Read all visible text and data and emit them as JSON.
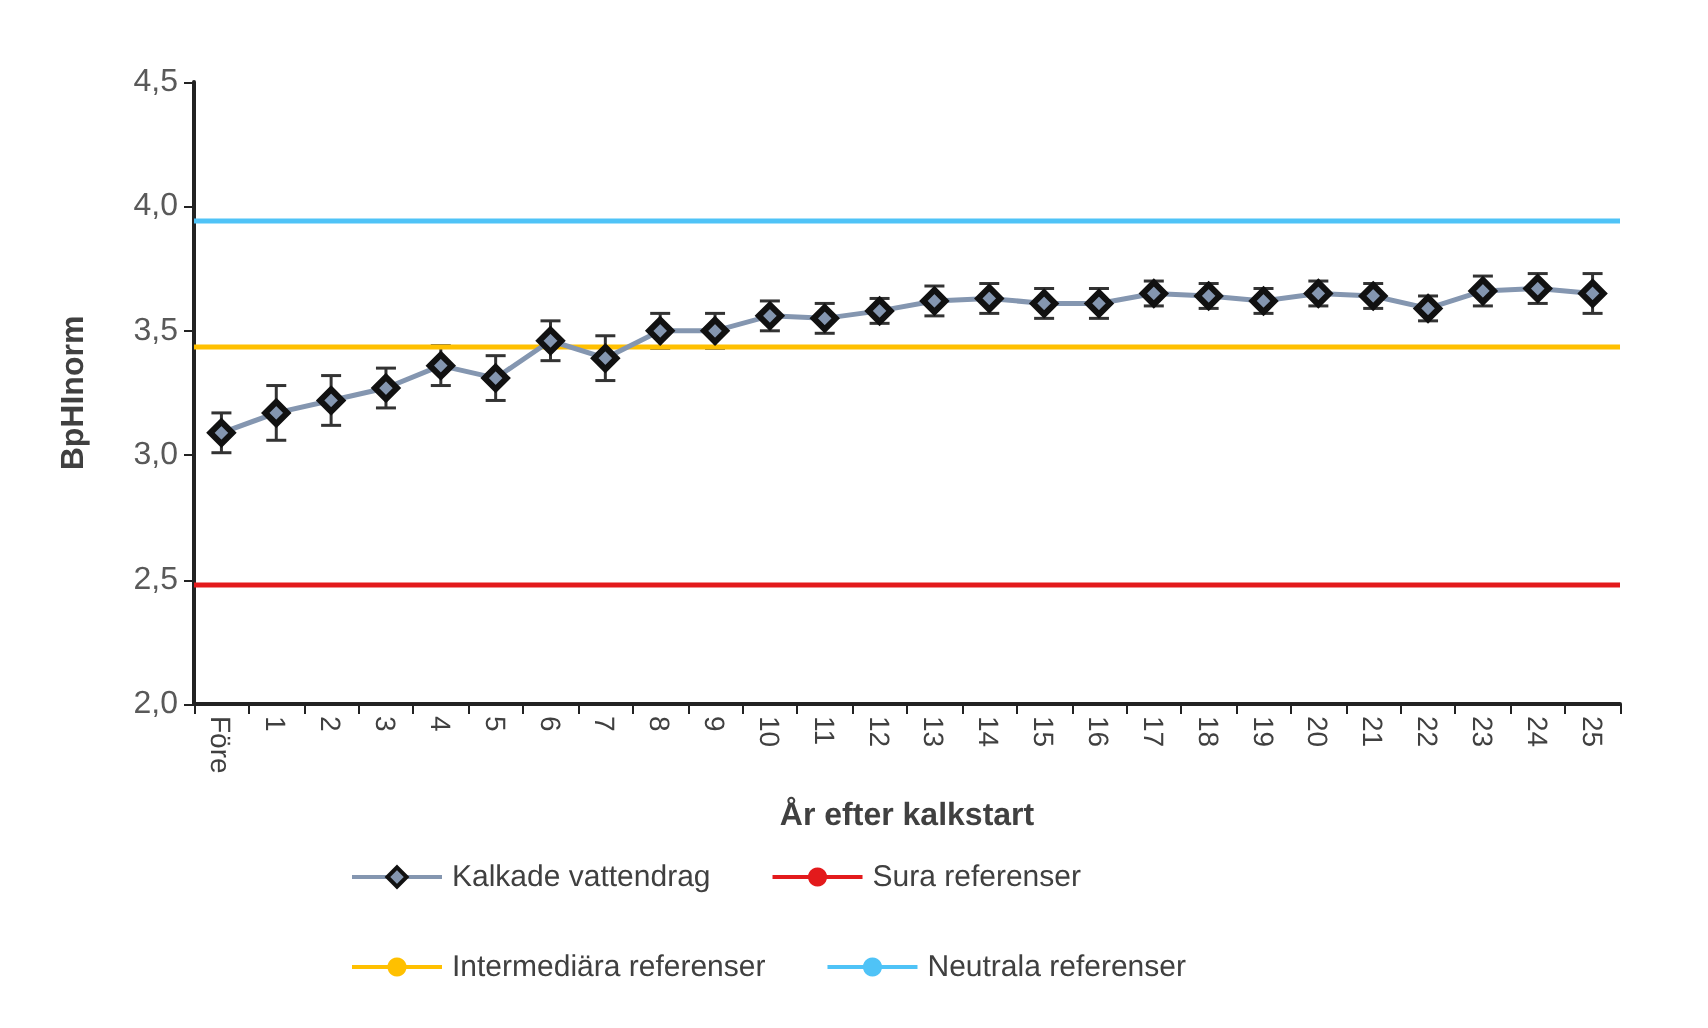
{
  "chart_data": {
    "type": "line",
    "xlabel": "År efter kalkstart",
    "ylabel": "BpHInorm",
    "categories": [
      "Före",
      "1",
      "2",
      "3",
      "4",
      "5",
      "6",
      "7",
      "8",
      "9",
      "10",
      "11",
      "12",
      "13",
      "14",
      "15",
      "16",
      "17",
      "18",
      "19",
      "20",
      "21",
      "22",
      "23",
      "24",
      "25"
    ],
    "series": [
      {
        "name": "Kalkade vattendrag",
        "color": "#8496b0",
        "values": [
          3.09,
          3.17,
          3.22,
          3.27,
          3.36,
          3.31,
          3.46,
          3.39,
          3.5,
          3.5,
          3.56,
          3.55,
          3.58,
          3.62,
          3.63,
          3.61,
          3.61,
          3.65,
          3.64,
          3.62,
          3.65,
          3.64,
          3.59,
          3.66,
          3.67,
          3.65
        ],
        "errors": [
          0.08,
          0.11,
          0.1,
          0.08,
          0.08,
          0.09,
          0.08,
          0.09,
          0.07,
          0.07,
          0.06,
          0.06,
          0.05,
          0.06,
          0.06,
          0.06,
          0.06,
          0.05,
          0.05,
          0.05,
          0.05,
          0.05,
          0.05,
          0.06,
          0.06,
          0.08
        ]
      }
    ],
    "ref_lines": [
      {
        "axis": "y",
        "value": 2.48,
        "label": "Sura referenser",
        "color": "#e31a1c"
      },
      {
        "axis": "y",
        "value": 3.44,
        "label": "Intermediära referenser",
        "color": "#ffc000"
      },
      {
        "axis": "y",
        "value": 3.94,
        "label": "Neutrala referenser",
        "color": "#4fc3f7"
      }
    ],
    "ylim": [
      2.0,
      4.5
    ],
    "yticks": [
      {
        "value": 2.0,
        "label": "2,0"
      },
      {
        "value": 2.5,
        "label": "2,5"
      },
      {
        "value": 3.0,
        "label": "3,0"
      },
      {
        "value": 3.5,
        "label": "3,5"
      },
      {
        "value": 4.0,
        "label": "4,0"
      },
      {
        "value": 4.5,
        "label": "4,5"
      }
    ],
    "marker": "diamond",
    "legend": "bottom",
    "grid": false
  }
}
